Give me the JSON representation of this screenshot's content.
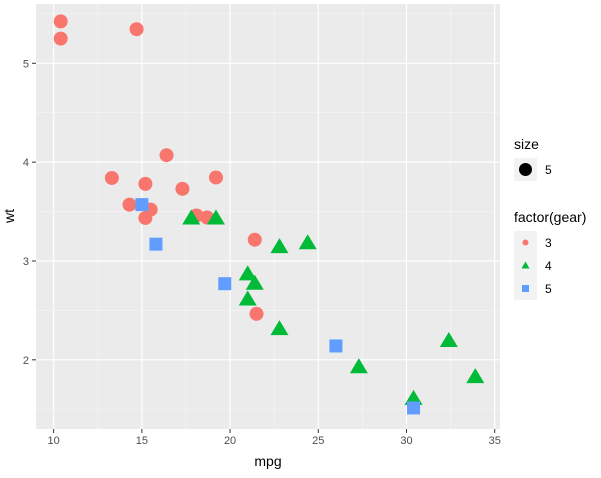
{
  "chart_data": {
    "type": "scatter",
    "xlabel": "mpg",
    "ylabel": "wt",
    "xlim": [
      9,
      35.3
    ],
    "ylim": [
      1.3,
      5.6
    ],
    "x_ticks": [
      10,
      15,
      20,
      25,
      30,
      35
    ],
    "y_ticks": [
      2,
      3,
      4,
      5
    ],
    "grid": true,
    "legend_position": "right",
    "legends": [
      {
        "title": "size",
        "entries": [
          {
            "label": "5",
            "shape": "circle",
            "color": "#000000"
          }
        ]
      },
      {
        "title": "factor(gear)",
        "entries": [
          {
            "label": "3",
            "shape": "circle",
            "color": "#F8766D"
          },
          {
            "label": "4",
            "shape": "triangle",
            "color": "#00BA38"
          },
          {
            "label": "5",
            "shape": "square",
            "color": "#619CFF"
          }
        ]
      }
    ],
    "series": [
      {
        "name": "3",
        "shape": "circle",
        "color": "#F8766D",
        "points": [
          [
            21.4,
            3.215
          ],
          [
            18.7,
            3.44
          ],
          [
            18.1,
            3.46
          ],
          [
            14.3,
            3.57
          ],
          [
            16.4,
            4.07
          ],
          [
            17.3,
            3.73
          ],
          [
            15.2,
            3.78
          ],
          [
            10.4,
            5.25
          ],
          [
            10.4,
            5.424
          ],
          [
            14.7,
            5.345
          ],
          [
            21.5,
            2.465
          ],
          [
            15.5,
            3.52
          ],
          [
            15.2,
            3.435
          ],
          [
            13.3,
            3.84
          ],
          [
            19.2,
            3.845
          ]
        ]
      },
      {
        "name": "4",
        "shape": "triangle",
        "color": "#00BA38",
        "points": [
          [
            21.0,
            2.62
          ],
          [
            21.0,
            2.875
          ],
          [
            22.8,
            2.32
          ],
          [
            24.4,
            3.19
          ],
          [
            22.8,
            3.15
          ],
          [
            19.2,
            3.44
          ],
          [
            17.8,
            3.44
          ],
          [
            32.4,
            2.2
          ],
          [
            30.4,
            1.615
          ],
          [
            33.9,
            1.835
          ],
          [
            27.3,
            1.935
          ],
          [
            21.4,
            2.78
          ]
        ]
      },
      {
        "name": "5",
        "shape": "square",
        "color": "#619CFF",
        "points": [
          [
            26.0,
            2.14
          ],
          [
            30.4,
            1.513
          ],
          [
            15.8,
            3.17
          ],
          [
            19.7,
            2.77
          ],
          [
            15.0,
            3.57
          ]
        ]
      }
    ]
  }
}
